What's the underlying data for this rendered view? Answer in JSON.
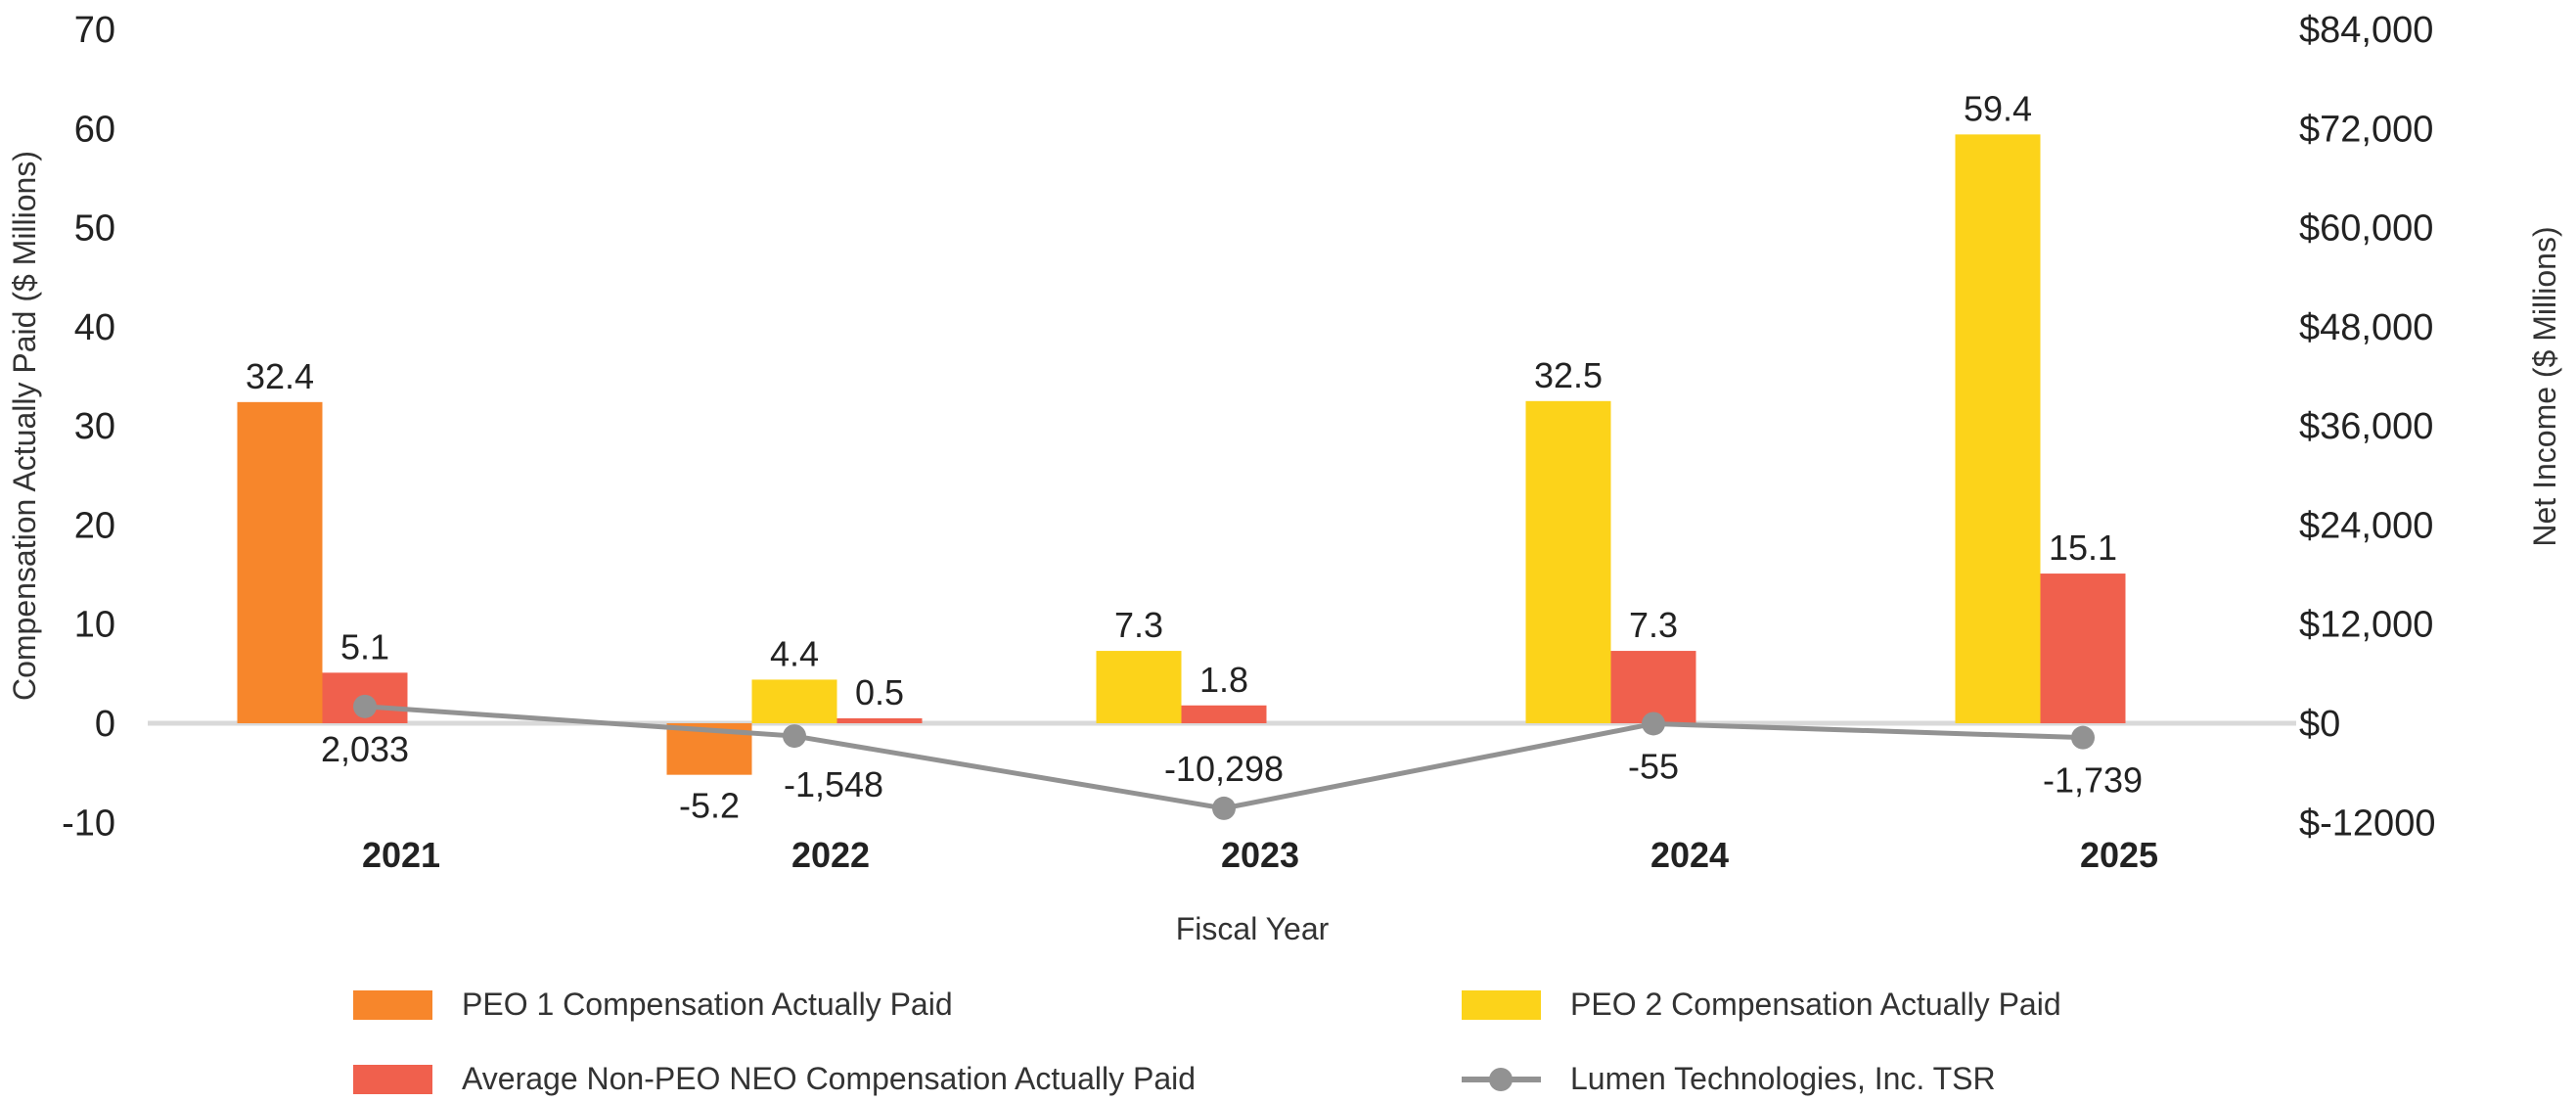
{
  "chart_data": {
    "type": "bar",
    "categories": [
      "2021",
      "2022",
      "2023",
      "2024",
      "2025"
    ],
    "xlabel": "Fiscal Year",
    "ylabel": "Compensation Actually Paid ($ Millions)",
    "ylabel_right": "Net Income ($ Millions)",
    "ylim": [
      -10,
      70
    ],
    "yticks": [
      "70",
      "60",
      "50",
      "40",
      "30",
      "20",
      "10",
      "0",
      "-10"
    ],
    "ylim_right": [
      -12000,
      84000
    ],
    "yticks_right": [
      "$84,000",
      "$72,000",
      "$60,000",
      "$48,000",
      "$36,000",
      "$24,000",
      "$12,000",
      "$0",
      "$-12000"
    ],
    "grid": false,
    "legend_position": "bottom",
    "series": [
      {
        "name": "PEO 1 Compensation Actually Paid",
        "type": "bar",
        "color": "#F7862B",
        "values": [
          32.4,
          -5.2,
          null,
          null,
          null
        ],
        "labels": [
          "32.4",
          "-5.2",
          null,
          null,
          null
        ]
      },
      {
        "name": "PEO 2 Compensation Actually Paid",
        "type": "bar",
        "color": "#FCD31A",
        "values": [
          null,
          4.4,
          7.3,
          32.5,
          59.4
        ],
        "labels": [
          null,
          "4.4",
          "7.3",
          "32.5",
          "59.4"
        ]
      },
      {
        "name": "Average Non-PEO NEO Compensation Actually Paid",
        "type": "bar",
        "color": "#F0604D",
        "values": [
          5.1,
          0.5,
          1.8,
          7.3,
          15.1
        ],
        "labels": [
          "5.1",
          "0.5",
          "1.8",
          "7.3",
          "15.1"
        ]
      },
      {
        "name": "Lumen Technologies, Inc. TSR",
        "type": "line",
        "axis": "right",
        "color": "#929292",
        "values": [
          2033,
          -1548,
          -10298,
          -55,
          -1739
        ],
        "labels": [
          "2,033",
          "-1,548",
          "-10,298",
          "-55",
          "-1,739"
        ]
      }
    ]
  }
}
